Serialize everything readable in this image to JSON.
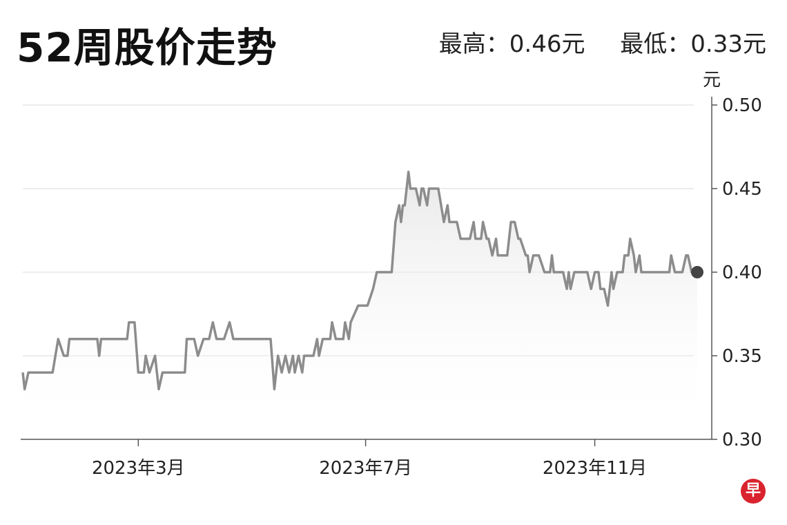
{
  "chart_data": {
    "type": "line",
    "title": "52周股价走势",
    "high_label": "最高：0.46元",
    "low_label": "最低：0.33元",
    "ylabel": "元",
    "ylim": [
      0.3,
      0.5
    ],
    "yticks": [
      "0.50",
      "0.45",
      "0.40",
      "0.35",
      "0.30"
    ],
    "ytick_values": [
      0.5,
      0.45,
      0.4,
      0.35,
      0.3
    ],
    "xlim": [
      "2022-12-29",
      "2023-12-26"
    ],
    "xticks": [
      {
        "date": "2023-03-01",
        "label": "2023年3月"
      },
      {
        "date": "2023-07-01",
        "label": "2023年7月"
      },
      {
        "date": "2023-11-01",
        "label": "2023年11月"
      }
    ],
    "grid": true,
    "line_color": "#8c8c8c",
    "end_marker_color": "#444444",
    "points": [
      [
        "2022-12-29",
        0.34
      ],
      [
        "2022-12-30",
        0.33
      ],
      [
        "2023-01-01",
        0.34
      ],
      [
        "2023-01-14",
        0.34
      ],
      [
        "2023-01-17",
        0.36
      ],
      [
        "2023-01-20",
        0.35
      ],
      [
        "2023-01-22",
        0.35
      ],
      [
        "2023-01-23",
        0.36
      ],
      [
        "2023-02-07",
        0.36
      ],
      [
        "2023-02-08",
        0.35
      ],
      [
        "2023-02-09",
        0.36
      ],
      [
        "2023-02-23",
        0.36
      ],
      [
        "2023-02-24",
        0.37
      ],
      [
        "2023-02-27",
        0.37
      ],
      [
        "2023-03-01",
        0.34
      ],
      [
        "2023-03-04",
        0.34
      ],
      [
        "2023-03-05",
        0.35
      ],
      [
        "2023-03-07",
        0.34
      ],
      [
        "2023-03-10",
        0.35
      ],
      [
        "2023-03-12",
        0.33
      ],
      [
        "2023-03-14",
        0.34
      ],
      [
        "2023-03-26",
        0.34
      ],
      [
        "2023-03-27",
        0.36
      ],
      [
        "2023-03-31",
        0.36
      ],
      [
        "2023-04-02",
        0.35
      ],
      [
        "2023-04-05",
        0.36
      ],
      [
        "2023-04-08",
        0.36
      ],
      [
        "2023-04-10",
        0.37
      ],
      [
        "2023-04-12",
        0.36
      ],
      [
        "2023-04-16",
        0.36
      ],
      [
        "2023-04-19",
        0.37
      ],
      [
        "2023-04-21",
        0.36
      ],
      [
        "2023-05-11",
        0.36
      ],
      [
        "2023-05-13",
        0.33
      ],
      [
        "2023-05-15",
        0.35
      ],
      [
        "2023-05-17",
        0.34
      ],
      [
        "2023-05-19",
        0.35
      ],
      [
        "2023-05-21",
        0.34
      ],
      [
        "2023-05-23",
        0.35
      ],
      [
        "2023-05-24",
        0.34
      ],
      [
        "2023-05-26",
        0.35
      ],
      [
        "2023-05-28",
        0.34
      ],
      [
        "2023-05-29",
        0.35
      ],
      [
        "2023-06-03",
        0.35
      ],
      [
        "2023-06-05",
        0.36
      ],
      [
        "2023-06-06",
        0.35
      ],
      [
        "2023-06-08",
        0.36
      ],
      [
        "2023-06-12",
        0.36
      ],
      [
        "2023-06-13",
        0.37
      ],
      [
        "2023-06-15",
        0.36
      ],
      [
        "2023-06-19",
        0.36
      ],
      [
        "2023-06-20",
        0.37
      ],
      [
        "2023-06-22",
        0.36
      ],
      [
        "2023-06-23",
        0.37
      ],
      [
        "2023-06-27",
        0.38
      ],
      [
        "2023-07-02",
        0.38
      ],
      [
        "2023-07-05",
        0.39
      ],
      [
        "2023-07-07",
        0.4
      ],
      [
        "2023-07-15",
        0.4
      ],
      [
        "2023-07-17",
        0.43
      ],
      [
        "2023-07-19",
        0.44
      ],
      [
        "2023-07-20",
        0.43
      ],
      [
        "2023-07-21",
        0.44
      ],
      [
        "2023-07-22",
        0.44
      ],
      [
        "2023-07-24",
        0.46
      ],
      [
        "2023-07-25",
        0.45
      ],
      [
        "2023-07-28",
        0.45
      ],
      [
        "2023-07-30",
        0.44
      ],
      [
        "2023-07-31",
        0.45
      ],
      [
        "2023-08-01",
        0.45
      ],
      [
        "2023-08-03",
        0.44
      ],
      [
        "2023-08-04",
        0.45
      ],
      [
        "2023-08-09",
        0.45
      ],
      [
        "2023-08-12",
        0.43
      ],
      [
        "2023-08-14",
        0.44
      ],
      [
        "2023-08-15",
        0.43
      ],
      [
        "2023-08-19",
        0.43
      ],
      [
        "2023-08-21",
        0.42
      ],
      [
        "2023-08-26",
        0.42
      ],
      [
        "2023-08-28",
        0.43
      ],
      [
        "2023-08-29",
        0.42
      ],
      [
        "2023-09-01",
        0.42
      ],
      [
        "2023-09-02",
        0.43
      ],
      [
        "2023-09-04",
        0.42
      ],
      [
        "2023-09-05",
        0.42
      ],
      [
        "2023-09-07",
        0.41
      ],
      [
        "2023-09-09",
        0.42
      ],
      [
        "2023-09-10",
        0.41
      ],
      [
        "2023-09-15",
        0.41
      ],
      [
        "2023-09-17",
        0.43
      ],
      [
        "2023-09-19",
        0.43
      ],
      [
        "2023-09-21",
        0.42
      ],
      [
        "2023-09-22",
        0.42
      ],
      [
        "2023-09-25",
        0.41
      ],
      [
        "2023-09-26",
        0.41
      ],
      [
        "2023-09-27",
        0.4
      ],
      [
        "2023-09-29",
        0.41
      ],
      [
        "2023-10-02",
        0.41
      ],
      [
        "2023-10-05",
        0.4
      ],
      [
        "2023-10-08",
        0.4
      ],
      [
        "2023-10-09",
        0.41
      ],
      [
        "2023-10-10",
        0.4
      ],
      [
        "2023-10-15",
        0.4
      ],
      [
        "2023-10-17",
        0.39
      ],
      [
        "2023-10-18",
        0.4
      ],
      [
        "2023-10-19",
        0.39
      ],
      [
        "2023-10-21",
        0.4
      ],
      [
        "2023-10-28",
        0.4
      ],
      [
        "2023-10-30",
        0.39
      ],
      [
        "2023-11-01",
        0.4
      ],
      [
        "2023-11-03",
        0.4
      ],
      [
        "2023-11-04",
        0.39
      ],
      [
        "2023-11-06",
        0.39
      ],
      [
        "2023-11-08",
        0.38
      ],
      [
        "2023-11-10",
        0.4
      ],
      [
        "2023-11-11",
        0.39
      ],
      [
        "2023-11-13",
        0.4
      ],
      [
        "2023-11-16",
        0.4
      ],
      [
        "2023-11-17",
        0.41
      ],
      [
        "2023-11-19",
        0.41
      ],
      [
        "2023-11-20",
        0.42
      ],
      [
        "2023-11-22",
        0.41
      ],
      [
        "2023-11-23",
        0.4
      ],
      [
        "2023-11-25",
        0.41
      ],
      [
        "2023-11-26",
        0.4
      ],
      [
        "2023-12-11",
        0.4
      ],
      [
        "2023-12-12",
        0.41
      ],
      [
        "2023-12-14",
        0.4
      ],
      [
        "2023-12-18",
        0.4
      ],
      [
        "2023-12-20",
        0.41
      ],
      [
        "2023-12-21",
        0.41
      ],
      [
        "2023-12-23",
        0.4
      ],
      [
        "2023-12-26",
        0.4
      ]
    ]
  },
  "logo": {
    "text": "早",
    "color": "#d9232e"
  }
}
